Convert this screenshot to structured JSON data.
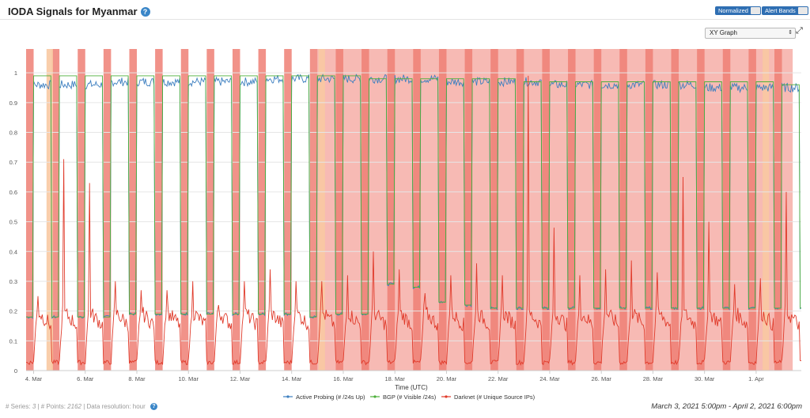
{
  "header": {
    "title": "IODA Signals for Myanmar",
    "normalized_label": "Normalized",
    "alert_bands_label": "Alert Bands",
    "graph_type": "XY Graph"
  },
  "footer": {
    "series_label": "# Series:",
    "series_count": "3",
    "points_label": "# Points:",
    "points_count": "2162",
    "resolution_text": "Data resolution: hour",
    "date_range": "March 3, 2021 5:00pm - April 2, 2021 6:00pm"
  },
  "colors": {
    "active_probing": "#3d7fc0",
    "bgp": "#4caf3a",
    "darknet": "#e03a2a",
    "alert_red": "#f4a39b",
    "alert_red_dark": "#ee7f74",
    "alert_orange": "#f8c9a2"
  },
  "chart_data": {
    "type": "line",
    "xlabel": "Time (UTC)",
    "ylabel": "",
    "x_range": [
      "2021-03-03 17:00",
      "2021-04-02 18:00"
    ],
    "x_ticks": [
      "4. Mar",
      "6. Mar",
      "8. Mar",
      "10. Mar",
      "12. Mar",
      "14. Mar",
      "16. Mar",
      "18. Mar",
      "20. Mar",
      "22. Mar",
      "24. Mar",
      "26. Mar",
      "28. Mar",
      "30. Mar",
      "1. Apr"
    ],
    "ylim": [
      0,
      1
    ],
    "y_ticks": [
      "0",
      "0.1",
      "0.2",
      "0.3",
      "0.4",
      "0.5",
      "0.6",
      "0.7",
      "0.8",
      "0.9",
      "1"
    ],
    "grid": true,
    "legend_position": "bottom-center",
    "series": [
      {
        "name": "Active Probing (# /24s Up)",
        "key": "active_probing",
        "day_level": [
          0.96,
          0.96,
          0.96,
          0.97,
          0.97,
          0.97,
          0.97,
          0.97,
          0.97,
          0.98,
          0.98,
          0.98,
          0.98,
          0.98,
          0.98,
          0.98,
          0.97,
          0.97,
          0.97,
          0.97,
          0.96,
          0.96,
          0.96,
          0.96,
          0.96,
          0.96,
          0.95,
          0.95,
          0.95,
          0.95
        ],
        "night_level": [
          0.18,
          0.18,
          0.18,
          0.18,
          0.19,
          0.19,
          0.19,
          0.19,
          0.19,
          0.19,
          0.19,
          0.18,
          0.19,
          0.19,
          0.29,
          0.28,
          0.23,
          0.22,
          0.21,
          0.21,
          0.21,
          0.21,
          0.21,
          0.21,
          0.21,
          0.21,
          0.21,
          0.21,
          0.21,
          0.21
        ]
      },
      {
        "name": "BGP (# Visible /24s)",
        "key": "bgp",
        "day_level": [
          0.99,
          0.99,
          0.99,
          0.99,
          0.99,
          0.99,
          0.99,
          0.99,
          0.99,
          0.99,
          0.99,
          0.99,
          0.99,
          0.98,
          0.98,
          0.98,
          0.98,
          0.98,
          0.98,
          0.97,
          0.97,
          0.97,
          0.97,
          0.97,
          0.97,
          0.97,
          0.97,
          0.97,
          0.97,
          0.96
        ],
        "night_level": [
          0.18,
          0.18,
          0.18,
          0.18,
          0.19,
          0.19,
          0.19,
          0.19,
          0.19,
          0.19,
          0.19,
          0.18,
          0.19,
          0.19,
          0.29,
          0.28,
          0.23,
          0.22,
          0.21,
          0.21,
          0.21,
          0.21,
          0.21,
          0.21,
          0.21,
          0.21,
          0.21,
          0.21,
          0.21,
          0.21
        ]
      },
      {
        "name": "Darknet (# Unique Source IPs)",
        "key": "darknet",
        "night_low": 0.02,
        "day_mid": 0.2,
        "daily_peak": [
          0.25,
          0.71,
          0.63,
          0.3,
          0.27,
          0.27,
          0.3,
          0.22,
          0.3,
          0.34,
          0.3,
          0.3,
          0.32,
          0.4,
          0.34,
          0.26,
          0.32,
          0.36,
          0.32,
          0.99,
          0.48,
          0.32,
          0.34,
          0.37,
          0.33,
          0.65,
          0.5,
          0.29,
          0.31,
          0.6
        ]
      }
    ],
    "alert_bands": {
      "night_outage_red": true,
      "shutdown_period": [
        "2021-03-15",
        "2021-04-02"
      ],
      "orange_bands": [
        "2021-03-04 12:00",
        "2021-03-15 01:00",
        "2021-04-01 06:00"
      ]
    }
  }
}
